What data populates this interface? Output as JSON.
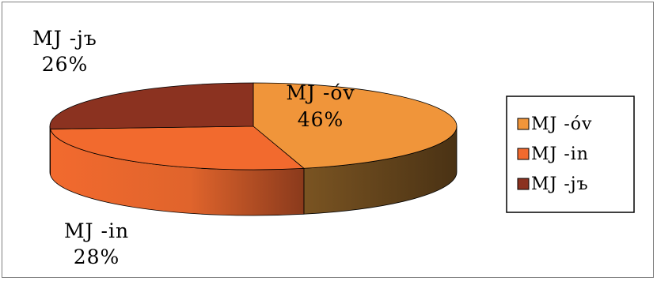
{
  "chart_data": {
    "type": "pie",
    "style": "3d",
    "title": "",
    "slices": [
      {
        "name": "MJ -óv",
        "value": 46,
        "label": "46%",
        "color": "#f0953a",
        "side_color": "#6b4a1d"
      },
      {
        "name": "MJ -in",
        "value": 28,
        "label": "28%",
        "color": "#f26a2e",
        "side_color": "#c85a28"
      },
      {
        "name": "MJ -jъ",
        "value": 26,
        "label": "26%",
        "color": "#8b3220",
        "side_color": "#5e2418"
      }
    ],
    "legend_position": "right",
    "legend": [
      {
        "label": "MJ -óv",
        "color": "#f0953a"
      },
      {
        "label": "MJ -in",
        "color": "#f26a2e"
      },
      {
        "label": "MJ -jъ",
        "color": "#8b3220"
      }
    ]
  }
}
